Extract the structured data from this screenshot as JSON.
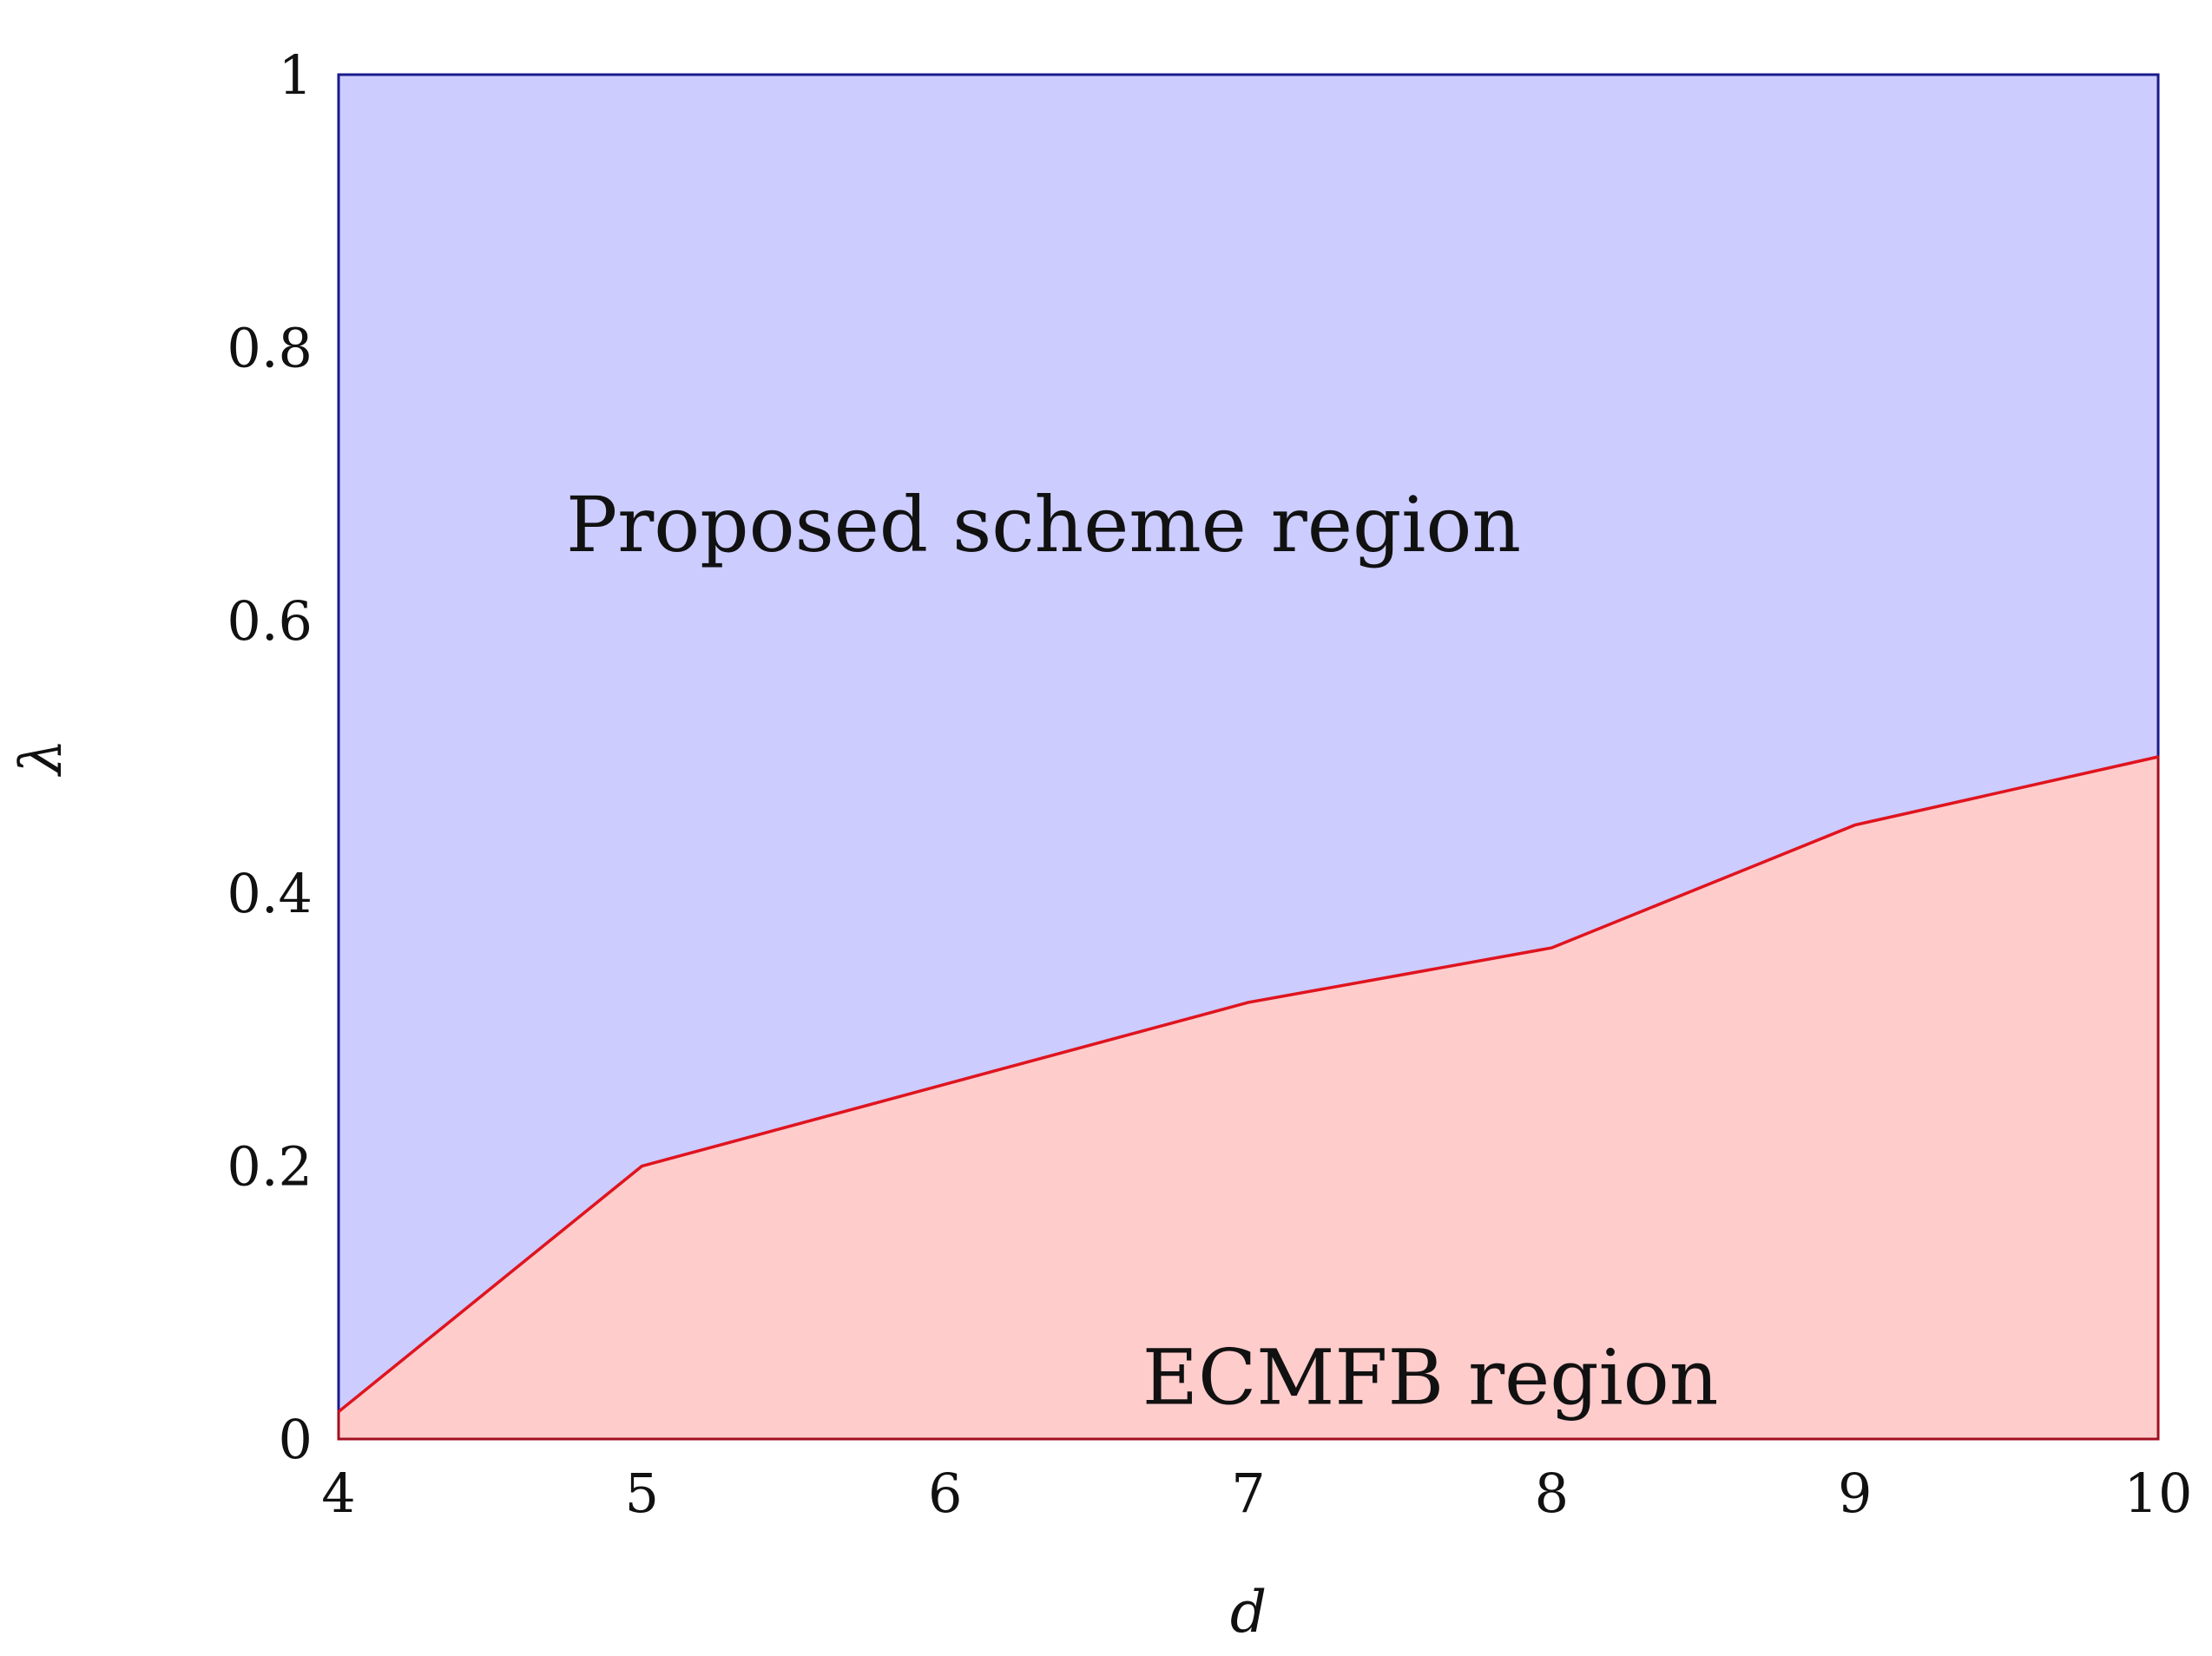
{
  "chart_data": {
    "type": "area",
    "x": [
      4,
      5,
      7,
      8,
      9,
      10
    ],
    "boundary": [
      0.02,
      0.2,
      0.32,
      0.36,
      0.45,
      0.5
    ],
    "xlim": [
      4,
      10
    ],
    "ylim": [
      0,
      1
    ],
    "xticks": [
      "4",
      "5",
      "6",
      "7",
      "8",
      "9",
      "10"
    ],
    "yticks": [
      "0",
      "0.2",
      "0.4",
      "0.6",
      "0.8",
      "1"
    ],
    "xlabel": "d",
    "ylabel": "λ",
    "grid": false,
    "regions": {
      "upper_label": "Proposed scheme region",
      "lower_label": "ECMFB region",
      "upper_label_pos": {
        "x": 4.75,
        "y": 0.67
      },
      "lower_label_pos": {
        "x": 6.65,
        "y": 0.045
      }
    },
    "colors": {
      "upper_fill": "#ccccff",
      "upper_stroke": "#1a1a8c",
      "lower_fill": "#ffcccc",
      "boundary_line": "#e0141e",
      "lower_stroke": "#a01020"
    }
  }
}
